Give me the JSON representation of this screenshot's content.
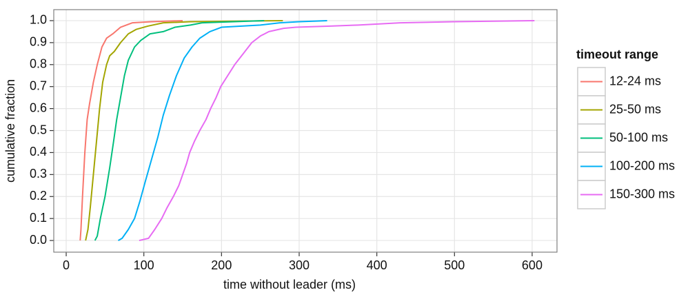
{
  "chart_data": {
    "type": "line",
    "x_label": "time without leader (ms)",
    "y_label": "cumulative fraction",
    "legend_title": "timeout range",
    "legend_position": "right",
    "grid": true,
    "xlim": [
      -16,
      632
    ],
    "ylim": [
      -0.053,
      1.05
    ],
    "xticks": [
      0,
      100,
      200,
      300,
      400,
      500,
      600
    ],
    "yticks": [
      {
        "value": 0,
        "label": "0.0"
      },
      0.1,
      0.2,
      0.3,
      0.4,
      0.5,
      0.6,
      0.7,
      0.8,
      0.9,
      {
        "value": 1,
        "label": "1.0"
      }
    ],
    "series": [
      {
        "name": "12-24 ms",
        "color": "#f8766d",
        "x": [
          18,
          19,
          21,
          24,
          27,
          30,
          35,
          40,
          46,
          52,
          60,
          70,
          85,
          110,
          150
        ],
        "values": [
          0,
          0.05,
          0.2,
          0.4,
          0.55,
          0.62,
          0.72,
          0.8,
          0.88,
          0.92,
          0.94,
          0.97,
          0.99,
          0.995,
          1.0
        ]
      },
      {
        "name": "25-50 ms",
        "color": "#a3a500",
        "x": [
          25,
          28,
          31,
          35,
          39,
          43,
          47,
          52,
          56,
          62,
          70,
          80,
          90,
          105,
          125,
          160,
          279
        ],
        "values": [
          0,
          0.05,
          0.15,
          0.3,
          0.45,
          0.6,
          0.72,
          0.8,
          0.84,
          0.86,
          0.9,
          0.94,
          0.96,
          0.975,
          0.99,
          0.995,
          1.0
        ]
      },
      {
        "name": "50-100 ms",
        "color": "#00bf7d",
        "x": [
          37,
          40,
          44,
          50,
          56,
          61,
          65,
          70,
          75,
          80,
          88,
          96,
          108,
          125,
          140,
          160,
          175,
          255
        ],
        "values": [
          0,
          0.02,
          0.1,
          0.2,
          0.33,
          0.45,
          0.55,
          0.65,
          0.75,
          0.82,
          0.88,
          0.91,
          0.94,
          0.95,
          0.97,
          0.98,
          0.99,
          1.0
        ]
      },
      {
        "name": "100-200 ms",
        "color": "#00b0f6",
        "x": [
          67,
          72,
          80,
          88,
          95,
          102,
          110,
          118,
          125,
          133,
          142,
          152,
          162,
          172,
          185,
          200,
          250,
          275,
          300,
          336
        ],
        "values": [
          0,
          0.01,
          0.05,
          0.1,
          0.18,
          0.27,
          0.37,
          0.47,
          0.57,
          0.66,
          0.75,
          0.83,
          0.88,
          0.92,
          0.95,
          0.97,
          0.98,
          0.99,
          0.995,
          1.0
        ]
      },
      {
        "name": "150-300 ms",
        "color": "#e76bf3",
        "x": [
          94,
          106,
          114,
          123,
          130,
          138,
          145,
          150,
          155,
          159,
          165,
          172,
          180,
          186,
          193,
          199,
          208,
          217,
          228,
          239,
          250,
          261,
          280,
          296,
          340,
          376,
          430,
          500,
          603
        ],
        "values": [
          0,
          0.01,
          0.05,
          0.1,
          0.15,
          0.2,
          0.25,
          0.3,
          0.35,
          0.4,
          0.45,
          0.5,
          0.55,
          0.6,
          0.65,
          0.7,
          0.75,
          0.8,
          0.85,
          0.9,
          0.93,
          0.95,
          0.965,
          0.97,
          0.975,
          0.98,
          0.99,
          0.995,
          1.0
        ]
      }
    ]
  }
}
